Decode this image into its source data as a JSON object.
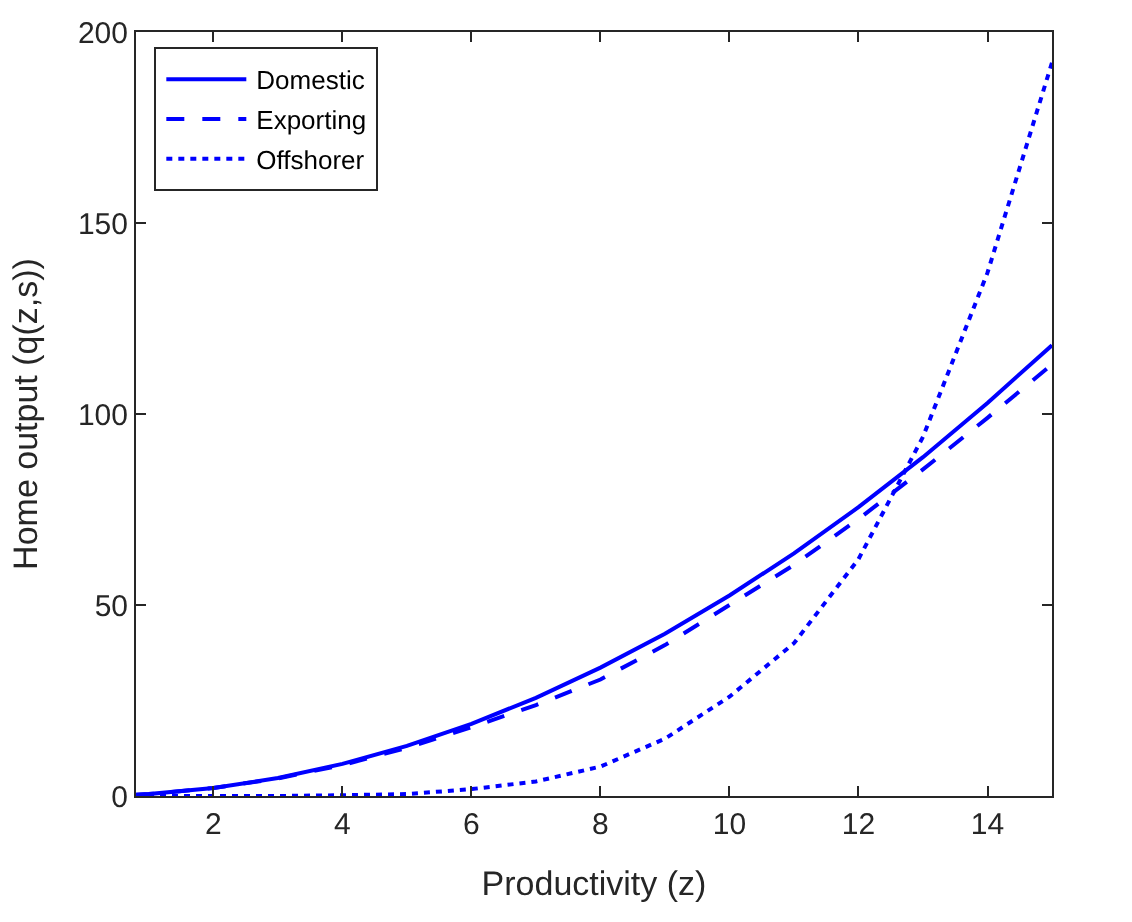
{
  "chart_data": {
    "type": "line",
    "xlabel": "Productivity (z)",
    "ylabel": "Home output (q(z,s))",
    "x": [
      0.8,
      1,
      2,
      3,
      4,
      5,
      6,
      7,
      8,
      9,
      10,
      11,
      12,
      13,
      14,
      15
    ],
    "series": [
      {
        "name": "Domestic",
        "color": "#0000ff",
        "line_style": "solid",
        "values": [
          0.3,
          0.5,
          2.1,
          4.7,
          8.4,
          13.1,
          18.9,
          25.7,
          33.6,
          42.5,
          52.5,
          63.5,
          75.6,
          88.7,
          102.9,
          118
        ]
      },
      {
        "name": "Exporting",
        "color": "#0000ff",
        "line_style": "dashed",
        "values": [
          0.3,
          0.5,
          2.1,
          4.6,
          8.1,
          12.6,
          18,
          23.8,
          30.5,
          39.5,
          50,
          60.5,
          72.5,
          85.5,
          99,
          113
        ]
      },
      {
        "name": "Offshorer",
        "color": "#0000ff",
        "line_style": "dotted",
        "values": [
          0,
          0,
          0,
          0,
          0.2,
          0.5,
          1.8,
          3.8,
          7.7,
          15,
          26,
          40,
          62,
          94,
          137,
          192
        ]
      }
    ],
    "xlim": [
      0.8,
      15
    ],
    "xticks": [
      2,
      4,
      6,
      8,
      10,
      12,
      14
    ],
    "ylim": [
      0,
      200
    ],
    "yticks": [
      0,
      50,
      100,
      150,
      200
    ],
    "legend": "top left",
    "marker": "none"
  }
}
